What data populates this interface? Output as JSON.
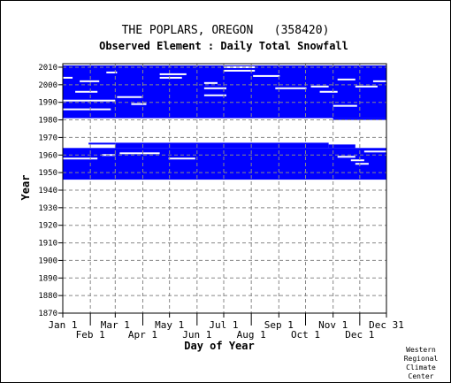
{
  "chart_data": {
    "type": "heatmap",
    "title": "THE POPLARS, OREGON   (358420)",
    "subtitle": "Observed Element : Daily Total Snowfall",
    "xlabel": "Day of Year",
    "ylabel": "Year",
    "xlim": [
      1,
      365
    ],
    "ylim": [
      1870,
      2012
    ],
    "y_ticks": [
      1870,
      1880,
      1890,
      1900,
      1910,
      1920,
      1930,
      1940,
      1950,
      1960,
      1970,
      1980,
      1990,
      2000,
      2010
    ],
    "x_ticks": [
      {
        "label": "Jan 1",
        "day": 1,
        "row": "top"
      },
      {
        "label": "Feb 1",
        "day": 32,
        "row": "bottom"
      },
      {
        "label": "Mar 1",
        "day": 60,
        "row": "top"
      },
      {
        "label": "Apr 1",
        "day": 91,
        "row": "bottom"
      },
      {
        "label": "May 1",
        "day": 121,
        "row": "top"
      },
      {
        "label": "Jun 1",
        "day": 152,
        "row": "bottom"
      },
      {
        "label": "Jul 1",
        "day": 182,
        "row": "top"
      },
      {
        "label": "Aug 1",
        "day": 213,
        "row": "bottom"
      },
      {
        "label": "Sep 1",
        "day": 244,
        "row": "top"
      },
      {
        "label": "Oct 1",
        "day": 274,
        "row": "bottom"
      },
      {
        "label": "Nov 1",
        "day": 305,
        "row": "top"
      },
      {
        "label": "Dec 1",
        "day": 335,
        "row": "bottom"
      },
      {
        "label": "Dec 31",
        "day": 365,
        "row": "top"
      }
    ],
    "grid": true,
    "data_color": "#0000ff",
    "series": [
      {
        "values": [
          {
            "day_start": 1,
            "day_end": 365,
            "year_start": 1981,
            "year_end": 2011
          },
          {
            "day_start": 305,
            "day_end": 365,
            "year_start": 1980,
            "year_end": 1981
          },
          {
            "day_start": 1,
            "day_end": 365,
            "year_start": 1946,
            "year_end": 1964
          },
          {
            "day_start": 60,
            "day_end": 300,
            "year_start": 1964,
            "year_end": 1967
          },
          {
            "day_start": 30,
            "day_end": 60,
            "year_start": 1966,
            "year_end": 1967
          },
          {
            "day_start": 300,
            "day_end": 330,
            "year_start": 1964,
            "year_end": 1966
          }
        ]
      }
    ],
    "gaps": [
      {
        "day_start": 182,
        "day_end": 217,
        "year": 2008
      },
      {
        "day_start": 182,
        "day_end": 217,
        "year": 2010
      },
      {
        "day_start": 110,
        "day_end": 140,
        "year": 2006
      },
      {
        "day_start": 110,
        "day_end": 135,
        "year": 2004
      },
      {
        "day_start": 160,
        "day_end": 175,
        "year": 2001
      },
      {
        "day_start": 160,
        "day_end": 185,
        "year": 1998
      },
      {
        "day_start": 160,
        "day_end": 185,
        "year": 1994
      },
      {
        "day_start": 215,
        "day_end": 245,
        "year": 2005
      },
      {
        "day_start": 240,
        "day_end": 275,
        "year": 1998
      },
      {
        "day_start": 280,
        "day_end": 300,
        "year": 1999
      },
      {
        "day_start": 290,
        "day_end": 310,
        "year": 1996
      },
      {
        "day_start": 310,
        "day_end": 330,
        "year": 2003
      },
      {
        "day_start": 330,
        "day_end": 355,
        "year": 1999
      },
      {
        "day_start": 305,
        "day_end": 332,
        "year": 1988
      },
      {
        "day_start": 350,
        "day_end": 365,
        "year": 2002
      },
      {
        "day_start": 1,
        "day_end": 12,
        "year": 2004
      },
      {
        "day_start": 20,
        "day_end": 42,
        "year": 2002
      },
      {
        "day_start": 15,
        "day_end": 40,
        "year": 1996
      },
      {
        "day_start": 1,
        "day_end": 55,
        "year": 1986
      },
      {
        "day_start": 1,
        "day_end": 60,
        "year": 1991
      },
      {
        "day_start": 62,
        "day_end": 90,
        "year": 1993
      },
      {
        "day_start": 78,
        "day_end": 95,
        "year": 1989
      },
      {
        "day_start": 50,
        "day_end": 62,
        "year": 2007
      },
      {
        "day_start": 1,
        "day_end": 40,
        "year": 1958
      },
      {
        "day_start": 45,
        "day_end": 60,
        "year": 1960
      },
      {
        "day_start": 65,
        "day_end": 110,
        "year": 1961
      },
      {
        "day_start": 120,
        "day_end": 150,
        "year": 1958
      },
      {
        "day_start": 340,
        "day_end": 365,
        "year": 1962
      },
      {
        "day_start": 325,
        "day_end": 340,
        "year": 1957
      },
      {
        "day_start": 310,
        "day_end": 330,
        "year": 1959
      },
      {
        "day_start": 330,
        "day_end": 345,
        "year": 1955
      }
    ]
  },
  "footer": {
    "credit_lines": [
      "Western",
      "Regional",
      "Climate",
      "Center"
    ]
  }
}
